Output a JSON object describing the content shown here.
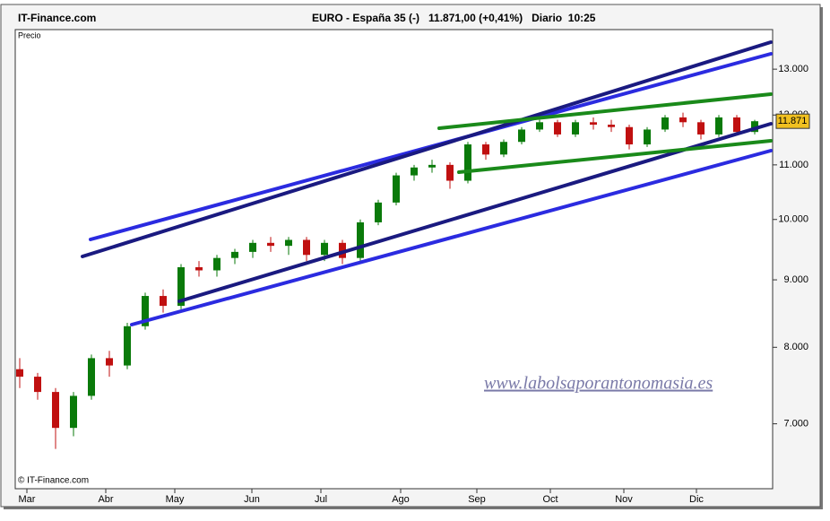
{
  "chart_data": {
    "type": "candlestick",
    "source": "IT-Finance.com",
    "title": "EURO - España 35 (-)   11.871,00 (+0,41%)   Diario  10:25",
    "panel_label": "Precio",
    "copyright": "© IT-Finance.com",
    "watermark": "www.labolsaporantonomasia.es",
    "log_scale": true,
    "grid": false,
    "up_color": "#0a7a0a",
    "down_color": "#c01010",
    "ylim": [
      6250,
      13930
    ],
    "yticks": [
      {
        "value": 7000,
        "label": "7.000"
      },
      {
        "value": 8000,
        "label": "8.000"
      },
      {
        "value": 9000,
        "label": "9.000"
      },
      {
        "value": 10000,
        "label": "10.000"
      },
      {
        "value": 11000,
        "label": "11.000"
      },
      {
        "value": 12000,
        "label": "12.000"
      },
      {
        "value": 13000,
        "label": "13.000"
      }
    ],
    "last_price": {
      "value": 11871,
      "label": "11.871"
    },
    "xlim": [
      -0.2,
      41.9
    ],
    "xticks": [
      {
        "value": 0.4,
        "label": "Mar"
      },
      {
        "value": 4.8,
        "label": "Abr"
      },
      {
        "value": 8.65,
        "label": "May"
      },
      {
        "value": 12.95,
        "label": "Jun"
      },
      {
        "value": 16.8,
        "label": "Jul"
      },
      {
        "value": 21.25,
        "label": "Ago"
      },
      {
        "value": 25.5,
        "label": "Sep"
      },
      {
        "value": 29.6,
        "label": "Oct"
      },
      {
        "value": 33.7,
        "label": "Nov"
      },
      {
        "value": 37.75,
        "label": "Dic"
      }
    ],
    "open": [
      7700,
      7600,
      7400,
      6950,
      7350,
      7850,
      7750,
      8300,
      8750,
      8600,
      9200,
      9150,
      9350,
      9450,
      9600,
      9550,
      9650,
      9400,
      9600,
      9350,
      9950,
      10300,
      10800,
      10950,
      11000,
      10700,
      11400,
      11200,
      11450,
      11700,
      11850,
      11600,
      11850,
      11800,
      11750,
      11400,
      11700,
      11950,
      11850,
      11600,
      11950,
      11650
    ],
    "high": [
      7850,
      7650,
      7450,
      7400,
      7900,
      7950,
      8350,
      8800,
      8850,
      9250,
      9300,
      9400,
      9500,
      9650,
      9700,
      9700,
      9700,
      9650,
      9650,
      10000,
      10350,
      10850,
      11000,
      11100,
      11050,
      11450,
      11450,
      11500,
      11750,
      11900,
      11900,
      11900,
      11950,
      11900,
      11800,
      11750,
      12000,
      12050,
      11900,
      12000,
      12000,
      11900
    ],
    "low": [
      7450,
      7300,
      6700,
      6850,
      7300,
      7600,
      7700,
      8250,
      8500,
      8550,
      9050,
      9050,
      9250,
      9350,
      9450,
      9400,
      9300,
      9300,
      9250,
      9300,
      9900,
      10250,
      10700,
      10850,
      10550,
      10650,
      11100,
      11150,
      11400,
      11650,
      11550,
      11550,
      11700,
      11650,
      11300,
      11350,
      11650,
      11750,
      11500,
      11550,
      11600,
      11600
    ],
    "close": [
      7600,
      7400,
      6950,
      7350,
      7850,
      7750,
      8300,
      8750,
      8600,
      9200,
      9150,
      9350,
      9450,
      9600,
      9550,
      9650,
      9400,
      9600,
      9350,
      9950,
      10300,
      10800,
      10950,
      11000,
      10700,
      11400,
      11200,
      11450,
      11700,
      11850,
      11600,
      11850,
      11800,
      11750,
      11400,
      11700,
      11950,
      11850,
      11600,
      11950,
      11650,
      11871
    ]
  }
}
